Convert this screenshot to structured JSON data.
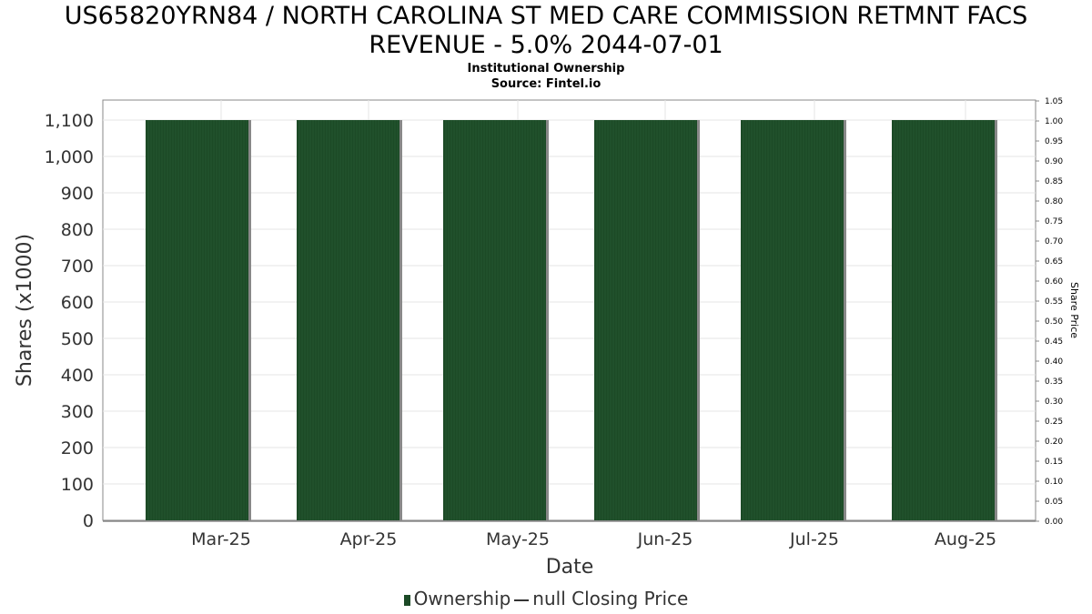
{
  "header": {
    "title_line1": "US65820YRN84 / NORTH CAROLINA ST MED CARE COMMISSION RETMNT FACS",
    "title_line2": "REVENUE - 5.0% 2044-07-01",
    "subtitle1": "Institutional Ownership",
    "subtitle2": "Source: Fintel.io"
  },
  "legend": {
    "ownership": "Ownership",
    "closing_price": "null Closing Price"
  },
  "colors": {
    "bar": "#1c4a26",
    "bar_edge": "#888888",
    "grid": "#e6e6e6",
    "axis": "#888888"
  },
  "chart_data": {
    "type": "bar",
    "xlabel": "Date",
    "ylabel": "Shares (x1000)",
    "ylabel_right": "Share Price",
    "ylim": [
      0,
      1150
    ],
    "y_ticks": [
      0,
      100,
      200,
      300,
      400,
      500,
      600,
      700,
      800,
      900,
      1000,
      1100
    ],
    "y_tick_labels": [
      "0",
      "100",
      "200",
      "300",
      "400",
      "500",
      "600",
      "700",
      "800",
      "900",
      "1,000",
      "1,100"
    ],
    "y2lim": [
      0,
      1.05
    ],
    "y2_tick_labels": [
      "0.00",
      "0.05",
      "0.10",
      "0.15",
      "0.20",
      "0.25",
      "0.30",
      "0.35",
      "0.40",
      "0.45",
      "0.50",
      "0.55",
      "0.60",
      "0.65",
      "0.70",
      "0.75",
      "0.80",
      "0.85",
      "0.90",
      "0.95",
      "1.00",
      "1.05"
    ],
    "categories": [
      "Mar-25",
      "Apr-25",
      "May-25",
      "Jun-25",
      "Jul-25",
      "Aug-25"
    ],
    "values": [
      1100,
      1100,
      1100,
      1100,
      1100,
      1100
    ],
    "grid": true
  }
}
